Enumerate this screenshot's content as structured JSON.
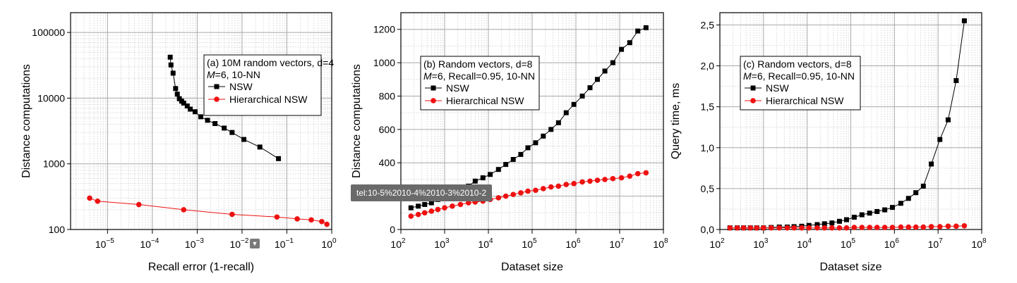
{
  "chart_data": [
    {
      "type": "line",
      "xscale": "log",
      "yscale": "log",
      "xlim": [
        1.5e-06,
        1.0
      ],
      "ylim": [
        100,
        200000
      ],
      "xticks": [
        1e-05,
        0.0001,
        0.001,
        0.01,
        0.1,
        1
      ],
      "yticks": [
        100,
        1000,
        10000,
        100000
      ],
      "ytick_labels": [
        "100",
        "1000",
        "10000",
        "100000"
      ],
      "xlabel": "Recall error (1-recall)",
      "ylabel": "Distance computations",
      "legend_title_lines": [
        "(a) 10M random vectors, d=4",
        "=6, 10-NN"
      ],
      "grid": true,
      "series": [
        {
          "name": "NSW",
          "color": "#000000",
          "marker": "square",
          "x": [
            0.00025,
            0.00026,
            0.00029,
            0.00033,
            0.00036,
            0.0004,
            0.00045,
            0.0005,
            0.0006,
            0.0007,
            0.0009,
            0.0012,
            0.0017,
            0.0025,
            0.004,
            0.006,
            0.011,
            0.025,
            0.065
          ],
          "y": [
            42000,
            32000,
            24000,
            14000,
            11500,
            9800,
            9000,
            8400,
            7600,
            6800,
            6200,
            5200,
            4600,
            4100,
            3500,
            3000,
            2350,
            1800,
            1200
          ]
        },
        {
          "name": "Hierarchical NSW",
          "color": "#ee1111",
          "marker": "circle",
          "x": [
            4e-06,
            6e-06,
            5e-05,
            0.0005,
            0.006,
            0.06,
            0.17,
            0.35,
            0.6,
            0.78
          ],
          "y": [
            300,
            270,
            240,
            200,
            170,
            155,
            145,
            140,
            132,
            120
          ]
        }
      ]
    },
    {
      "type": "line",
      "xscale": "log",
      "xlim": [
        100,
        100000000.0
      ],
      "ylim": [
        0,
        1300
      ],
      "xticks": [
        100,
        1000,
        10000,
        100000,
        1000000,
        10000000,
        100000000
      ],
      "yticks": [
        0,
        200,
        400,
        600,
        800,
        1000,
        1200
      ],
      "ytick_labels": [
        "0",
        "200",
        "400",
        "600",
        "800",
        "1000",
        "1200"
      ],
      "xlabel": "Dataset size",
      "ylabel": "Distance computations",
      "legend_title_lines": [
        "(b) Random vectors, d=8",
        "=6, Recall=0.95, 10-NN"
      ],
      "grid": true,
      "series": [
        {
          "name": "NSW",
          "color": "#000000",
          "marker": "square",
          "x": [
            170,
            250,
            350,
            500,
            700,
            1000,
            1500,
            2300,
            3500,
            5000,
            7500,
            11000,
            17000,
            25000,
            37000,
            55000,
            80000,
            120000,
            180000,
            270000,
            400000,
            600000,
            900000,
            1400000,
            2100000,
            3100000,
            4600000,
            7000000,
            11000000,
            17000000,
            26000000,
            40000000
          ],
          "y": [
            130,
            140,
            150,
            160,
            180,
            200,
            220,
            240,
            260,
            290,
            310,
            330,
            360,
            390,
            420,
            450,
            490,
            520,
            560,
            600,
            640,
            700,
            750,
            800,
            850,
            900,
            950,
            1000,
            1080,
            1120,
            1190,
            1210
          ]
        },
        {
          "name": "Hierarchical NSW",
          "color": "#ee1111",
          "marker": "circle",
          "x": [
            170,
            250,
            350,
            500,
            700,
            1000,
            1500,
            2300,
            3500,
            5000,
            7500,
            11000,
            17000,
            25000,
            37000,
            55000,
            80000,
            120000,
            180000,
            270000,
            400000,
            600000,
            900000,
            1400000,
            2100000,
            3100000,
            4600000,
            7000000,
            11000000,
            17000000,
            26000000,
            40000000
          ],
          "y": [
            80,
            90,
            100,
            110,
            120,
            130,
            140,
            150,
            160,
            165,
            170,
            180,
            190,
            200,
            210,
            220,
            230,
            235,
            245,
            255,
            260,
            270,
            275,
            285,
            290,
            295,
            300,
            305,
            310,
            320,
            335,
            340
          ]
        }
      ]
    },
    {
      "type": "line",
      "xscale": "log",
      "xlim": [
        100,
        100000000.0
      ],
      "ylim": [
        0,
        2.65
      ],
      "xticks": [
        100,
        1000,
        10000,
        100000,
        1000000,
        10000000,
        100000000
      ],
      "yticks": [
        0,
        0.5,
        1.0,
        1.5,
        2.0,
        2.5
      ],
      "ytick_labels": [
        "0,0",
        "0,5",
        "1,0",
        "1,5",
        "2,0",
        "2,5"
      ],
      "xlabel": "Dataset size",
      "ylabel": "Query time, ms",
      "legend_title_lines": [
        "(c) Random vectors, d=8",
        "=6, Recall=0.95, 10-NN"
      ],
      "grid": true,
      "series": [
        {
          "name": "NSW",
          "color": "#000000",
          "marker": "square",
          "x": [
            170,
            250,
            350,
            500,
            700,
            1000,
            1500,
            2300,
            3500,
            5000,
            7500,
            11000,
            17000,
            25000,
            37000,
            55000,
            80000,
            120000,
            180000,
            270000,
            400000,
            600000,
            900000,
            1400000,
            2100000,
            3100000,
            4600000,
            7000000,
            11000000,
            17000000,
            26000000,
            40000000
          ],
          "y": [
            0.02,
            0.02,
            0.02,
            0.02,
            0.02,
            0.02,
            0.025,
            0.03,
            0.03,
            0.035,
            0.04,
            0.05,
            0.06,
            0.07,
            0.08,
            0.1,
            0.12,
            0.15,
            0.18,
            0.2,
            0.22,
            0.24,
            0.27,
            0.32,
            0.38,
            0.45,
            0.53,
            0.8,
            1.1,
            1.34,
            1.82,
            2.55
          ]
        },
        {
          "name": "Hierarchical NSW",
          "color": "#ee1111",
          "marker": "circle",
          "x": [
            170,
            250,
            350,
            500,
            700,
            1000,
            1500,
            2300,
            3500,
            5000,
            7500,
            11000,
            17000,
            25000,
            37000,
            55000,
            80000,
            120000,
            180000,
            270000,
            400000,
            600000,
            900000,
            1400000,
            2100000,
            3100000,
            4600000,
            7000000,
            11000000,
            17000000,
            26000000,
            40000000
          ],
          "y": [
            0.02,
            0.02,
            0.02,
            0.02,
            0.02,
            0.02,
            0.02,
            0.02,
            0.02,
            0.02,
            0.02,
            0.02,
            0.02,
            0.02,
            0.02,
            0.02,
            0.02,
            0.025,
            0.025,
            0.025,
            0.025,
            0.025,
            0.025,
            0.03,
            0.03,
            0.03,
            0.03,
            0.035,
            0.035,
            0.04,
            0.04,
            0.045
          ]
        }
      ]
    }
  ],
  "tooltip": {
    "text": "tel:10-5%2010-4%2010-3%2010-2"
  },
  "dropdown": {
    "icon": "chevron-down-icon"
  }
}
